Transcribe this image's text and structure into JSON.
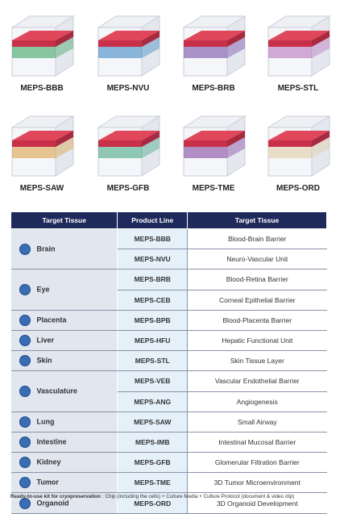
{
  "products": [
    "MEPS-BBB",
    "MEPS-NVU",
    "MEPS-BRB",
    "MEPS-STL",
    "MEPS-SAW",
    "MEPS-GFB",
    "MEPS-TME",
    "MEPS-ORD"
  ],
  "table": {
    "headers": [
      "Target Tissue",
      "Product Line",
      "Target Tissue"
    ],
    "groups": [
      {
        "tissue": "Brain",
        "rows": [
          [
            "MEPS-BBB",
            "Blood-Brain Barrier"
          ],
          [
            "MEPS-NVU",
            "Neuro-Vascular Unit"
          ]
        ]
      },
      {
        "tissue": "Eye",
        "rows": [
          [
            "MEPS-BRB",
            "Blood-Retina Barrier"
          ],
          [
            "MEPS-CEB",
            "Corneal Epithelial Barrier"
          ]
        ]
      },
      {
        "tissue": "Placenta",
        "rows": [
          [
            "MEPS-BPB",
            "Blood-Placenta Barrier"
          ]
        ]
      },
      {
        "tissue": "Liver",
        "rows": [
          [
            "MEPS-HFU",
            "Hepatic Functional Unit"
          ]
        ]
      },
      {
        "tissue": "Skin",
        "rows": [
          [
            "MEPS-STL",
            "Skin Tissue Layer"
          ]
        ]
      },
      {
        "tissue": "Vasculature",
        "rows": [
          [
            "MEPS-VEB",
            "Vascular Endothelial Barrier"
          ],
          [
            "MEPS-ANG",
            "Angiogenesis"
          ]
        ]
      },
      {
        "tissue": "Lung",
        "rows": [
          [
            "MEPS-SAW",
            "Small Airway"
          ]
        ]
      },
      {
        "tissue": "Intestine",
        "rows": [
          [
            "MEPS-IMB",
            "Intestinal Mucosal Barrier"
          ]
        ]
      },
      {
        "tissue": "Kidney",
        "rows": [
          [
            "MEPS-GFB",
            "Glomerular Filtration Barrier"
          ]
        ]
      },
      {
        "tissue": "Tumor",
        "rows": [
          [
            "MEPS-TME",
            "3D Tumor Microenvironment"
          ]
        ]
      },
      {
        "tissue": "Organoid",
        "rows": [
          [
            "MEPS-ORD",
            "3D Organoid Development"
          ]
        ]
      }
    ]
  },
  "footer": {
    "label": "Ready-to-use kit for cryopreservation",
    "text": ": Chip (including the cells) + Culture Media + Culture Protocol (document & video clip)"
  }
}
